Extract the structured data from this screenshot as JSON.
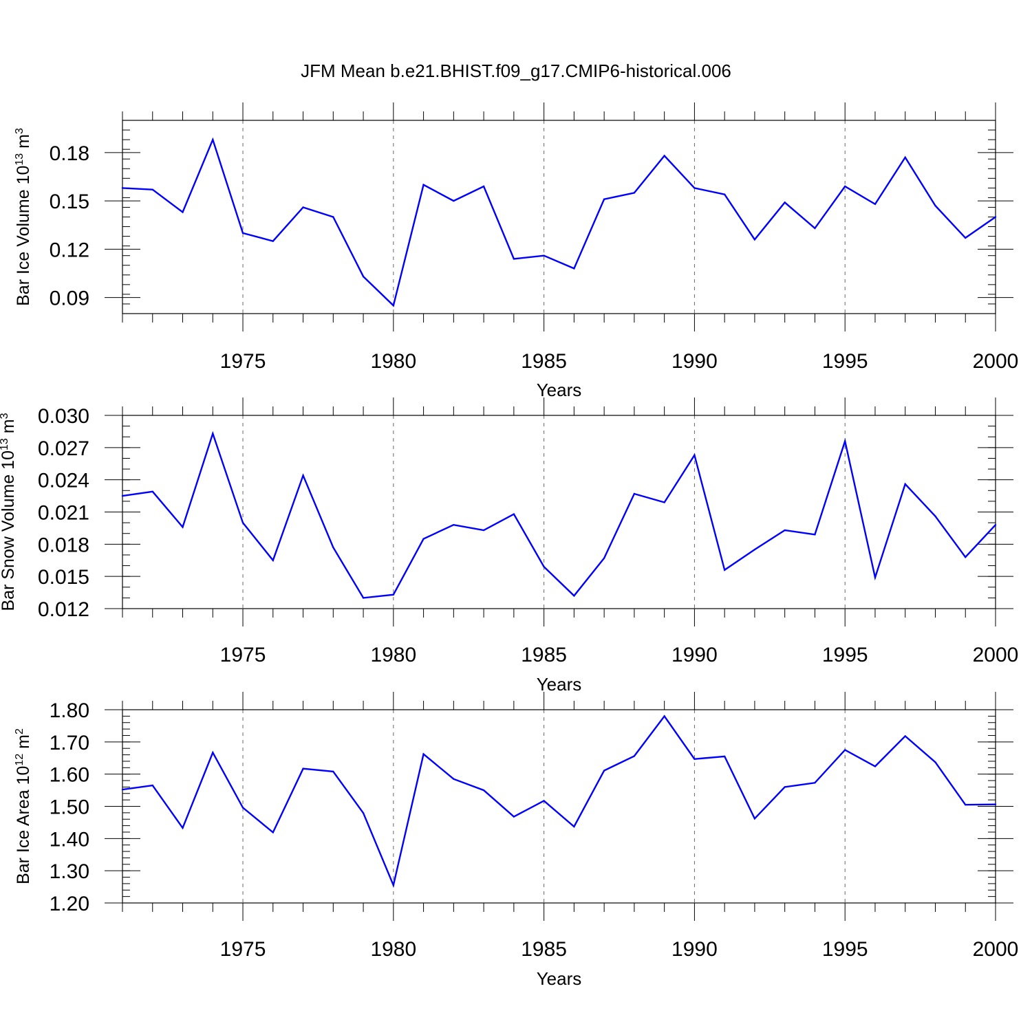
{
  "title": "JFM Mean b.e21.BHIST.f09_g17.CMIP6-historical.006",
  "colors": {
    "line": "#0000ff",
    "axis": "#000000",
    "grid": "#666666"
  },
  "chart_data": [
    {
      "type": "line",
      "xlabel": "Years",
      "ylabel": {
        "text": "Bar Ice Volume 10",
        "exp": "13",
        "unit": " m",
        "unit_exp": "3"
      },
      "xlim": [
        1971,
        2000
      ],
      "ylim": [
        0.08,
        0.2
      ],
      "xticks": [
        "1975",
        "1980",
        "1985",
        "1990",
        "1995",
        "2000"
      ],
      "yticks": [
        "0.09",
        "0.12",
        "0.15",
        "0.18"
      ],
      "grid": "x-dashed",
      "x": [
        1971,
        1972,
        1973,
        1974,
        1975,
        1976,
        1977,
        1978,
        1979,
        1980,
        1981,
        1982,
        1983,
        1984,
        1985,
        1986,
        1987,
        1988,
        1989,
        1990,
        1991,
        1992,
        1993,
        1994,
        1995,
        1996,
        1997,
        1998,
        1999,
        2000
      ],
      "series": [
        {
          "values": [
            0.158,
            0.157,
            0.143,
            0.188,
            0.13,
            0.125,
            0.146,
            0.14,
            0.103,
            0.085,
            0.16,
            0.15,
            0.159,
            0.114,
            0.116,
            0.108,
            0.151,
            0.155,
            0.178,
            0.158,
            0.154,
            0.126,
            0.149,
            0.133,
            0.159,
            0.148,
            0.177,
            0.147,
            0.127,
            0.14
          ]
        }
      ]
    },
    {
      "type": "line",
      "xlabel": "Years",
      "ylabel": {
        "text": "Bar Snow Volume 10",
        "exp": "13",
        "unit": " m",
        "unit_exp": "3"
      },
      "xlim": [
        1971,
        2000
      ],
      "ylim": [
        0.012,
        0.03
      ],
      "xticks": [
        "1975",
        "1980",
        "1985",
        "1990",
        "1995",
        "2000"
      ],
      "yticks": [
        "0.012",
        "0.015",
        "0.018",
        "0.021",
        "0.024",
        "0.027",
        "0.030"
      ],
      "grid": "x-dashed",
      "x": [
        1971,
        1972,
        1973,
        1974,
        1975,
        1976,
        1977,
        1978,
        1979,
        1980,
        1981,
        1982,
        1983,
        1984,
        1985,
        1986,
        1987,
        1988,
        1989,
        1990,
        1991,
        1992,
        1993,
        1994,
        1995,
        1996,
        1997,
        1998,
        1999,
        2000
      ],
      "series": [
        {
          "values": [
            0.0225,
            0.0229,
            0.0196,
            0.0283,
            0.02,
            0.0165,
            0.0244,
            0.0177,
            0.013,
            0.0133,
            0.0185,
            0.0198,
            0.0193,
            0.0208,
            0.0159,
            0.0132,
            0.0167,
            0.0227,
            0.0219,
            0.0263,
            0.0156,
            0.0175,
            0.0193,
            0.0189,
            0.0276,
            0.0149,
            0.0236,
            0.0206,
            0.0168,
            0.0198
          ]
        }
      ]
    },
    {
      "type": "line",
      "xlabel": "Years",
      "ylabel": {
        "text": "Bar Ice Area 10",
        "exp": "12",
        "unit": " m",
        "unit_exp": "2"
      },
      "xlim": [
        1971,
        2000
      ],
      "ylim": [
        1.2,
        1.8
      ],
      "xticks": [
        "1975",
        "1980",
        "1985",
        "1990",
        "1995",
        "2000"
      ],
      "yticks": [
        "1.20",
        "1.30",
        "1.40",
        "1.50",
        "1.60",
        "1.70",
        "1.80"
      ],
      "grid": "x-dashed",
      "x": [
        1971,
        1972,
        1973,
        1974,
        1975,
        1976,
        1977,
        1978,
        1979,
        1980,
        1981,
        1982,
        1983,
        1984,
        1985,
        1986,
        1987,
        1988,
        1989,
        1990,
        1991,
        1992,
        1993,
        1994,
        1995,
        1996,
        1997,
        1998,
        1999,
        2000
      ],
      "series": [
        {
          "values": [
            1.552,
            1.565,
            1.433,
            1.667,
            1.496,
            1.419,
            1.617,
            1.608,
            1.479,
            1.255,
            1.662,
            1.585,
            1.55,
            1.468,
            1.517,
            1.437,
            1.611,
            1.656,
            1.78,
            1.647,
            1.655,
            1.462,
            1.56,
            1.573,
            1.675,
            1.624,
            1.718,
            1.637,
            1.505,
            1.506
          ]
        }
      ]
    }
  ]
}
